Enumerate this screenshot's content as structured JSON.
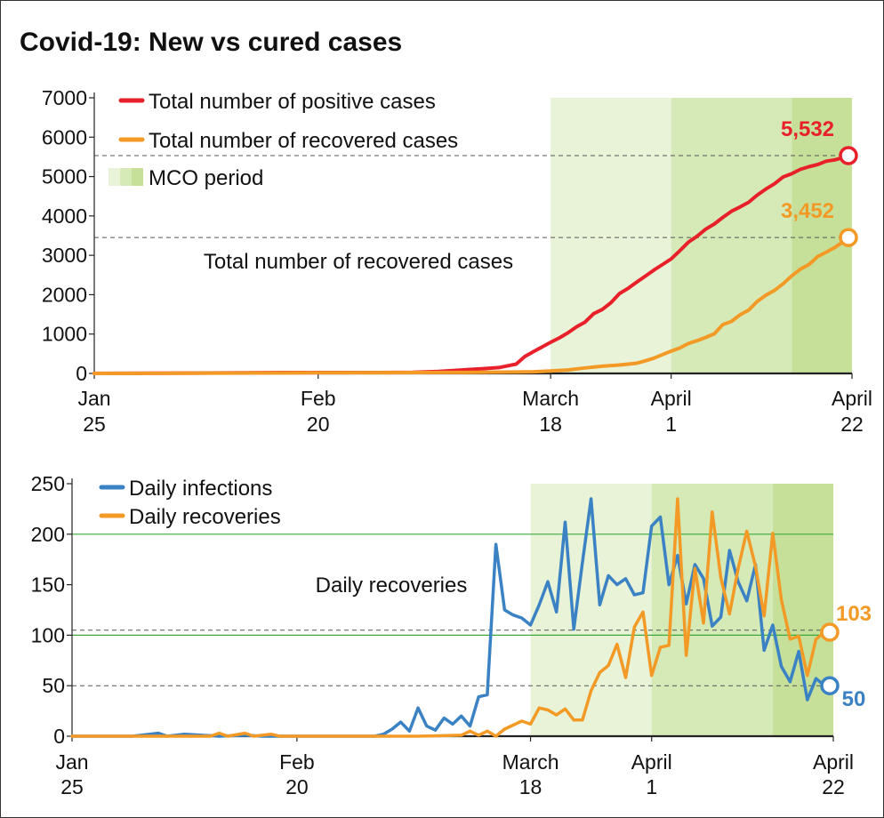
{
  "title": "Covid-19: New vs cured cases",
  "colors": {
    "positive": "#e8202a",
    "recovered": "#f39a26",
    "infections": "#3b82c4",
    "mco1": "#e8f3d8",
    "mco2": "#d6eab8",
    "mco3": "#c6e09a",
    "gridline": "#3aa83a",
    "reference": "#555555"
  },
  "chart_data": [
    {
      "type": "line",
      "ylim": [
        0,
        7000
      ],
      "yticks": [
        "0",
        "1000",
        "2000",
        "3000",
        "4000",
        "5000",
        "6000",
        "7000"
      ],
      "xticks": [
        {
          "line1": "Jan",
          "line2": "25",
          "date": "2020-01-25"
        },
        {
          "line1": "Feb",
          "line2": "20",
          "date": "2020-02-20"
        },
        {
          "line1": "March",
          "line2": "18",
          "date": "2020-03-18"
        },
        {
          "line1": "April",
          "line2": "1",
          "date": "2020-04-01"
        },
        {
          "line1": "April",
          "line2": "22",
          "date": "2020-04-22"
        }
      ],
      "legend": [
        {
          "label": "Total number of positive cases",
          "color": "#e8202a",
          "kind": "line"
        },
        {
          "label": "Total number of recovered cases",
          "color": "#f39a26",
          "kind": "line"
        },
        {
          "label": "MCO period",
          "color": "#d6eab8",
          "kind": "swatch"
        }
      ],
      "mco_phases": [
        {
          "start": "2020-03-18",
          "end": "2020-03-31"
        },
        {
          "start": "2020-04-01",
          "end": "2020-04-14"
        },
        {
          "start": "2020-04-15",
          "end": "2020-04-22"
        }
      ],
      "annotation": "Total number of recovered cases",
      "end_labels": [
        {
          "text": "5,532",
          "value": 5532,
          "series": "positive"
        },
        {
          "text": "3,452",
          "value": 3452,
          "series": "recovered"
        }
      ],
      "series": [
        {
          "key": "positive",
          "points": [
            [
              "2020-01-25",
              3
            ],
            [
              "2020-02-05",
              10
            ],
            [
              "2020-02-16",
              22
            ],
            [
              "2020-02-27",
              23
            ],
            [
              "2020-03-02",
              29
            ],
            [
              "2020-03-05",
              50
            ],
            [
              "2020-03-08",
              93
            ],
            [
              "2020-03-10",
              117
            ],
            [
              "2020-03-12",
              149
            ],
            [
              "2020-03-14",
              238
            ],
            [
              "2020-03-15",
              428
            ],
            [
              "2020-03-16",
              553
            ],
            [
              "2020-03-17",
              673
            ],
            [
              "2020-03-18",
              790
            ],
            [
              "2020-03-19",
              900
            ],
            [
              "2020-03-20",
              1030
            ],
            [
              "2020-03-21",
              1183
            ],
            [
              "2020-03-22",
              1306
            ],
            [
              "2020-03-23",
              1518
            ],
            [
              "2020-03-24",
              1624
            ],
            [
              "2020-03-25",
              1796
            ],
            [
              "2020-03-26",
              2031
            ],
            [
              "2020-03-27",
              2161
            ],
            [
              "2020-03-28",
              2320
            ],
            [
              "2020-03-29",
              2470
            ],
            [
              "2020-03-30",
              2626
            ],
            [
              "2020-03-31",
              2766
            ],
            [
              "2020-04-01",
              2908
            ],
            [
              "2020-04-02",
              3116
            ],
            [
              "2020-04-03",
              3333
            ],
            [
              "2020-04-04",
              3483
            ],
            [
              "2020-04-05",
              3662
            ],
            [
              "2020-04-06",
              3793
            ],
            [
              "2020-04-07",
              3963
            ],
            [
              "2020-04-08",
              4119
            ],
            [
              "2020-04-09",
              4228
            ],
            [
              "2020-04-10",
              4346
            ],
            [
              "2020-04-11",
              4530
            ],
            [
              "2020-04-12",
              4683
            ],
            [
              "2020-04-13",
              4817
            ],
            [
              "2020-04-14",
              4987
            ],
            [
              "2020-04-15",
              5072
            ],
            [
              "2020-04-16",
              5182
            ],
            [
              "2020-04-17",
              5251
            ],
            [
              "2020-04-18",
              5305
            ],
            [
              "2020-04-19",
              5389
            ],
            [
              "2020-04-20",
              5425
            ],
            [
              "2020-04-21",
              5482
            ],
            [
              "2020-04-22",
              5532
            ]
          ]
        },
        {
          "key": "recovered",
          "points": [
            [
              "2020-01-25",
              0
            ],
            [
              "2020-02-20",
              15
            ],
            [
              "2020-03-08",
              24
            ],
            [
              "2020-03-14",
              35
            ],
            [
              "2020-03-16",
              42
            ],
            [
              "2020-03-18",
              60
            ],
            [
              "2020-03-20",
              87
            ],
            [
              "2020-03-22",
              139
            ],
            [
              "2020-03-24",
              183
            ],
            [
              "2020-03-26",
              215
            ],
            [
              "2020-03-28",
              259
            ],
            [
              "2020-03-29",
              320
            ],
            [
              "2020-03-30",
              388
            ],
            [
              "2020-03-31",
              479
            ],
            [
              "2020-04-01",
              567
            ],
            [
              "2020-04-02",
              645
            ],
            [
              "2020-04-03",
              758
            ],
            [
              "2020-04-04",
              830
            ],
            [
              "2020-04-05",
              915
            ],
            [
              "2020-04-06",
              1005
            ],
            [
              "2020-04-07",
              1241
            ],
            [
              "2020-04-08",
              1321
            ],
            [
              "2020-04-09",
              1487
            ],
            [
              "2020-04-10",
              1608
            ],
            [
              "2020-04-11",
              1830
            ],
            [
              "2020-04-12",
              1987
            ],
            [
              "2020-04-13",
              2108
            ],
            [
              "2020-04-14",
              2276
            ],
            [
              "2020-04-15",
              2478
            ],
            [
              "2020-04-16",
              2647
            ],
            [
              "2020-04-17",
              2766
            ],
            [
              "2020-04-18",
              2967
            ],
            [
              "2020-04-19",
              3081
            ],
            [
              "2020-04-20",
              3197
            ],
            [
              "2020-04-21",
              3349
            ],
            [
              "2020-04-22",
              3452
            ]
          ]
        }
      ]
    },
    {
      "type": "line",
      "ylim": [
        0,
        250
      ],
      "yticks": [
        "0",
        "50",
        "100",
        "150",
        "200",
        "250"
      ],
      "xticks": [
        {
          "line1": "Jan",
          "line2": "25",
          "date": "2020-01-25"
        },
        {
          "line1": "Feb",
          "line2": "20",
          "date": "2020-02-20"
        },
        {
          "line1": "March",
          "line2": "18",
          "date": "2020-03-18"
        },
        {
          "line1": "April",
          "line2": "1",
          "date": "2020-04-01"
        },
        {
          "line1": "April",
          "line2": "22",
          "date": "2020-04-22"
        }
      ],
      "legend": [
        {
          "label": "Daily infections",
          "color": "#3b82c4",
          "kind": "line"
        },
        {
          "label": "Daily recoveries",
          "color": "#f39a26",
          "kind": "line"
        }
      ],
      "mco_phases": [
        {
          "start": "2020-03-18",
          "end": "2020-03-31"
        },
        {
          "start": "2020-04-01",
          "end": "2020-04-14"
        },
        {
          "start": "2020-04-15",
          "end": "2020-04-22"
        }
      ],
      "annotation": "Daily recoveries",
      "end_labels": [
        {
          "text": "103",
          "value": 103,
          "series": "recoveries"
        },
        {
          "text": "50",
          "value": 50,
          "series": "infections"
        }
      ],
      "series": [
        {
          "key": "infections",
          "points": [
            [
              "2020-01-25",
              0
            ],
            [
              "2020-02-01",
              0
            ],
            [
              "2020-02-04",
              3
            ],
            [
              "2020-02-05",
              0
            ],
            [
              "2020-02-07",
              2
            ],
            [
              "2020-02-09",
              1
            ],
            [
              "2020-02-11",
              0
            ],
            [
              "2020-02-14",
              1
            ],
            [
              "2020-02-16",
              0
            ],
            [
              "2020-02-27",
              0
            ],
            [
              "2020-02-29",
              0
            ],
            [
              "2020-03-01",
              2
            ],
            [
              "2020-03-02",
              7
            ],
            [
              "2020-03-03",
              14
            ],
            [
              "2020-03-04",
              5
            ],
            [
              "2020-03-05",
              28
            ],
            [
              "2020-03-06",
              10
            ],
            [
              "2020-03-07",
              6
            ],
            [
              "2020-03-08",
              18
            ],
            [
              "2020-03-09",
              12
            ],
            [
              "2020-03-10",
              20
            ],
            [
              "2020-03-11",
              10
            ],
            [
              "2020-03-12",
              39
            ],
            [
              "2020-03-13",
              41
            ],
            [
              "2020-03-14",
              190
            ],
            [
              "2020-03-15",
              125
            ],
            [
              "2020-03-16",
              120
            ],
            [
              "2020-03-17",
              117
            ],
            [
              "2020-03-18",
              110
            ],
            [
              "2020-03-19",
              130
            ],
            [
              "2020-03-20",
              153
            ],
            [
              "2020-03-21",
              123
            ],
            [
              "2020-03-22",
              212
            ],
            [
              "2020-03-23",
              106
            ],
            [
              "2020-03-24",
              172
            ],
            [
              "2020-03-25",
              235
            ],
            [
              "2020-03-26",
              130
            ],
            [
              "2020-03-27",
              159
            ],
            [
              "2020-03-28",
              150
            ],
            [
              "2020-03-29",
              156
            ],
            [
              "2020-03-30",
              140
            ],
            [
              "2020-03-31",
              142
            ],
            [
              "2020-04-01",
              208
            ],
            [
              "2020-04-02",
              217
            ],
            [
              "2020-04-03",
              150
            ],
            [
              "2020-04-04",
              179
            ],
            [
              "2020-04-05",
              131
            ],
            [
              "2020-04-06",
              170
            ],
            [
              "2020-04-07",
              156
            ],
            [
              "2020-04-08",
              109
            ],
            [
              "2020-04-09",
              118
            ],
            [
              "2020-04-10",
              184
            ],
            [
              "2020-04-11",
              153
            ],
            [
              "2020-04-12",
              134
            ],
            [
              "2020-04-13",
              170
            ],
            [
              "2020-04-14",
              85
            ],
            [
              "2020-04-15",
              110
            ],
            [
              "2020-04-16",
              69
            ],
            [
              "2020-04-17",
              54
            ],
            [
              "2020-04-18",
              84
            ],
            [
              "2020-04-19",
              36
            ],
            [
              "2020-04-20",
              57
            ],
            [
              "2020-04-21",
              50
            ],
            [
              "2020-04-22",
              50
            ]
          ]
        },
        {
          "key": "recoveries",
          "points": [
            [
              "2020-01-25",
              0
            ],
            [
              "2020-02-10",
              0
            ],
            [
              "2020-02-11",
              3
            ],
            [
              "2020-02-12",
              0
            ],
            [
              "2020-02-14",
              3
            ],
            [
              "2020-02-15",
              0
            ],
            [
              "2020-02-17",
              2
            ],
            [
              "2020-02-18",
              0
            ],
            [
              "2020-02-29",
              0
            ],
            [
              "2020-03-05",
              0
            ],
            [
              "2020-03-10",
              1
            ],
            [
              "2020-03-11",
              5
            ],
            [
              "2020-03-12",
              1
            ],
            [
              "2020-03-13",
              5
            ],
            [
              "2020-03-14",
              0
            ],
            [
              "2020-03-15",
              7
            ],
            [
              "2020-03-16",
              11
            ],
            [
              "2020-03-17",
              15
            ],
            [
              "2020-03-18",
              12
            ],
            [
              "2020-03-19",
              28
            ],
            [
              "2020-03-20",
              26
            ],
            [
              "2020-03-21",
              21
            ],
            [
              "2020-03-22",
              27
            ],
            [
              "2020-03-23",
              16
            ],
            [
              "2020-03-24",
              16
            ],
            [
              "2020-03-25",
              45
            ],
            [
              "2020-03-26",
              63
            ],
            [
              "2020-03-27",
              70
            ],
            [
              "2020-03-28",
              91
            ],
            [
              "2020-03-29",
              58
            ],
            [
              "2020-03-30",
              108
            ],
            [
              "2020-03-31",
              123
            ],
            [
              "2020-04-01",
              60
            ],
            [
              "2020-04-02",
              88
            ],
            [
              "2020-04-03",
              90
            ],
            [
              "2020-04-04",
              235
            ],
            [
              "2020-04-05",
              80
            ],
            [
              "2020-04-06",
              166
            ],
            [
              "2020-04-07",
              112
            ],
            [
              "2020-04-08",
              222
            ],
            [
              "2020-04-09",
              157
            ],
            [
              "2020-04-10",
              121
            ],
            [
              "2020-04-11",
              166
            ],
            [
              "2020-04-12",
              203
            ],
            [
              "2020-04-13",
              168
            ],
            [
              "2020-04-14",
              119
            ],
            [
              "2020-04-15",
              201
            ],
            [
              "2020-04-16",
              135
            ],
            [
              "2020-04-17",
              96
            ],
            [
              "2020-04-18",
              99
            ],
            [
              "2020-04-19",
              60
            ],
            [
              "2020-04-20",
              96
            ],
            [
              "2020-04-21",
              103
            ],
            [
              "2020-04-22",
              103
            ]
          ]
        }
      ]
    }
  ]
}
